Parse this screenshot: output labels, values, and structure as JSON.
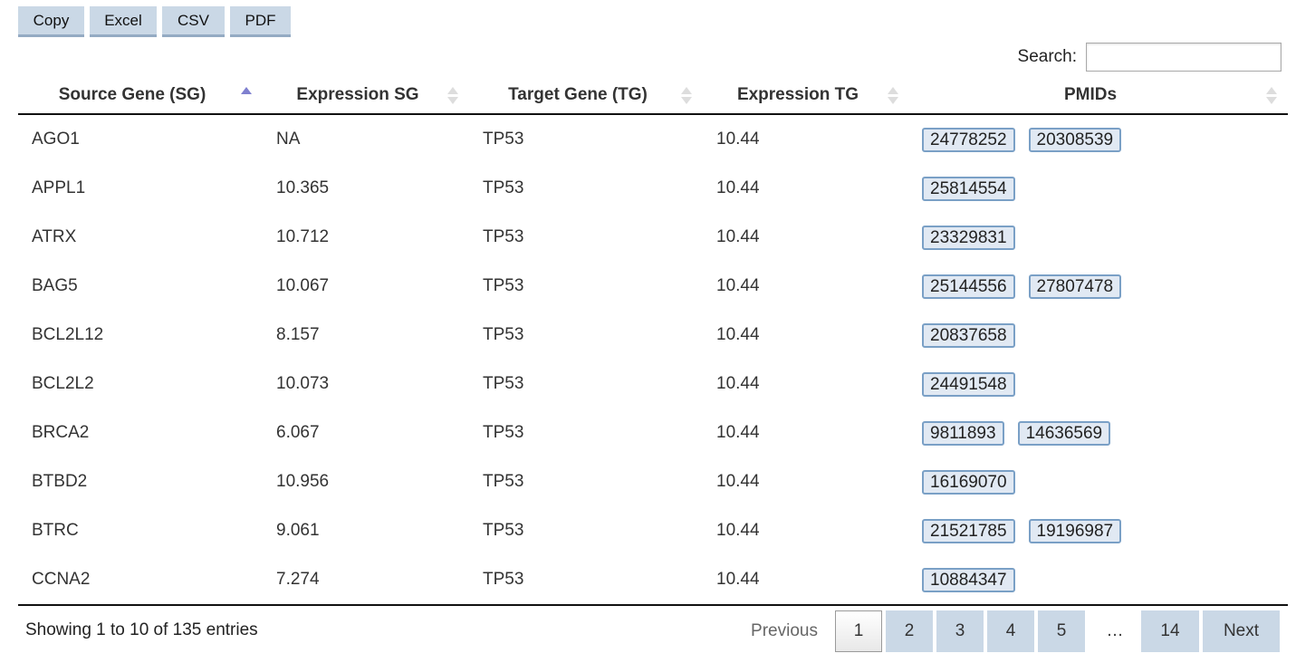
{
  "toolbar": {
    "buttons": [
      "Copy",
      "Excel",
      "CSV",
      "PDF"
    ]
  },
  "search": {
    "label": "Search:",
    "value": ""
  },
  "table": {
    "columns": [
      "Source Gene (SG)",
      "Expression SG",
      "Target Gene (TG)",
      "Expression TG",
      "PMIDs"
    ],
    "rows": [
      {
        "sg": "AGO1",
        "exp_sg": "NA",
        "tg": "TP53",
        "exp_tg": "10.44",
        "pmids": [
          "24778252",
          "20308539"
        ]
      },
      {
        "sg": "APPL1",
        "exp_sg": "10.365",
        "tg": "TP53",
        "exp_tg": "10.44",
        "pmids": [
          "25814554"
        ]
      },
      {
        "sg": "ATRX",
        "exp_sg": "10.712",
        "tg": "TP53",
        "exp_tg": "10.44",
        "pmids": [
          "23329831"
        ]
      },
      {
        "sg": "BAG5",
        "exp_sg": "10.067",
        "tg": "TP53",
        "exp_tg": "10.44",
        "pmids": [
          "25144556",
          "27807478"
        ]
      },
      {
        "sg": "BCL2L12",
        "exp_sg": "8.157",
        "tg": "TP53",
        "exp_tg": "10.44",
        "pmids": [
          "20837658"
        ]
      },
      {
        "sg": "BCL2L2",
        "exp_sg": "10.073",
        "tg": "TP53",
        "exp_tg": "10.44",
        "pmids": [
          "24491548"
        ]
      },
      {
        "sg": "BRCA2",
        "exp_sg": "6.067",
        "tg": "TP53",
        "exp_tg": "10.44",
        "pmids": [
          "9811893",
          "14636569"
        ]
      },
      {
        "sg": "BTBD2",
        "exp_sg": "10.956",
        "tg": "TP53",
        "exp_tg": "10.44",
        "pmids": [
          "16169070"
        ]
      },
      {
        "sg": "BTRC",
        "exp_sg": "9.061",
        "tg": "TP53",
        "exp_tg": "10.44",
        "pmids": [
          "21521785",
          "19196987"
        ]
      },
      {
        "sg": "CCNA2",
        "exp_sg": "7.274",
        "tg": "TP53",
        "exp_tg": "10.44",
        "pmids": [
          "10884347"
        ]
      }
    ]
  },
  "footer": {
    "info": "Showing 1 to 10 of 135 entries",
    "previous": "Previous",
    "pages": [
      "1",
      "2",
      "3",
      "4",
      "5"
    ],
    "current_page": "1",
    "ellipsis": "…",
    "last_page": "14",
    "next": "Next"
  },
  "colors": {
    "button_bg": "#cad8e6",
    "pmid_bg": "#e1e9f3",
    "pmid_border": "#7aa0c6",
    "sort_active": "#7f80cf"
  }
}
